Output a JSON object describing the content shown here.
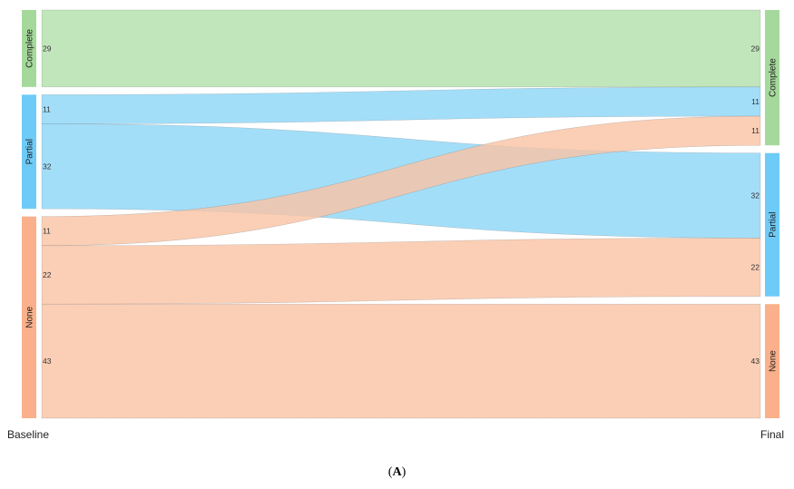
{
  "chart_data": {
    "type": "sankey",
    "stages": [
      "Baseline",
      "Final"
    ],
    "categories": [
      "Complete",
      "Partial",
      "None"
    ],
    "colors": {
      "Complete": {
        "node": "#a5d99b",
        "flow": "#b5e0ad"
      },
      "Partial": {
        "node": "#6ecbf7",
        "flow": "#8fd7f8"
      },
      "None": {
        "node": "#fab08a",
        "flow": "#f9c4a6"
      }
    },
    "flows": [
      {
        "from": "Complete",
        "to": "Complete",
        "value": 29
      },
      {
        "from": "Partial",
        "to": "Complete",
        "value": 11
      },
      {
        "from": "Partial",
        "to": "Partial",
        "value": 32
      },
      {
        "from": "None",
        "to": "Complete",
        "value": 11
      },
      {
        "from": "None",
        "to": "Partial",
        "value": 22
      },
      {
        "from": "None",
        "to": "None",
        "value": 43
      }
    ]
  },
  "caption": {
    "open": "(",
    "letter": "A",
    "close": ")"
  }
}
